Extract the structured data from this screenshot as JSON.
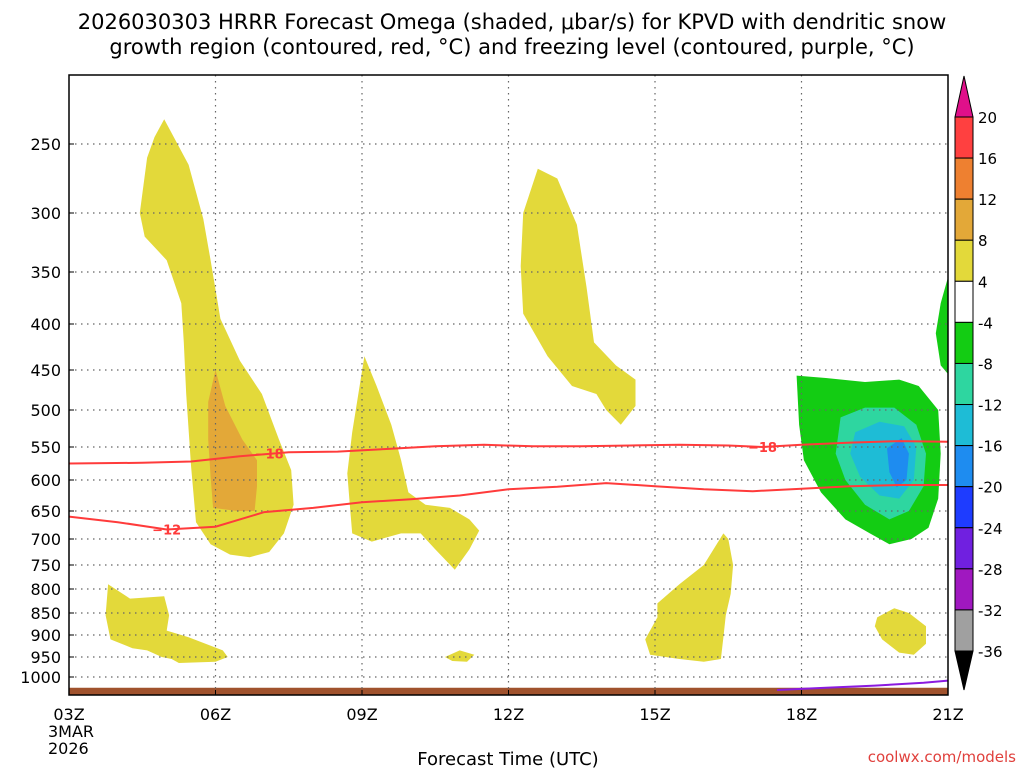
{
  "chart_data": {
    "type": "heatmap",
    "title_line1": "2026030303 HRRR Forecast Omega (shaded, μbar/s) for KPVD with dendritic snow",
    "title_line2": "growth region (contoured, red, °C) and freezing level (contoured, purple, °C)",
    "xlabel": "Forecast Time (UTC)",
    "ylabel": "",
    "x_ticks": [
      {
        "hour": 0,
        "label": "03Z",
        "sub1": "3MAR",
        "sub2": "2026"
      },
      {
        "hour": 3,
        "label": "06Z"
      },
      {
        "hour": 6,
        "label": "09Z"
      },
      {
        "hour": 9,
        "label": "12Z"
      },
      {
        "hour": 12,
        "label": "15Z"
      },
      {
        "hour": 15,
        "label": "18Z"
      },
      {
        "hour": 18,
        "label": "21Z"
      }
    ],
    "xlim": [
      0,
      18
    ],
    "y_ticks": [
      {
        "p": 250,
        "label": "250"
      },
      {
        "p": 300,
        "label": "300"
      },
      {
        "p": 350,
        "label": "350"
      },
      {
        "p": 400,
        "label": "400"
      },
      {
        "p": 450,
        "label": "450"
      },
      {
        "p": 500,
        "label": "500"
      },
      {
        "p": 550,
        "label": "550"
      },
      {
        "p": 600,
        "label": "600"
      },
      {
        "p": 650,
        "label": "650"
      },
      {
        "p": 700,
        "label": "700"
      },
      {
        "p": 750,
        "label": "750"
      },
      {
        "p": 800,
        "label": "800"
      },
      {
        "p": 850,
        "label": "850"
      },
      {
        "p": 900,
        "label": "900"
      },
      {
        "p": 950,
        "label": "950"
      },
      {
        "p": 1000,
        "label": "1000"
      }
    ],
    "ylim_hPa": [
      200,
      1025
    ],
    "colorbar": {
      "levels": [
        {
          "label": "20",
          "color": "#ff1e8c"
        },
        {
          "label": "16",
          "color": "#ff4040"
        },
        {
          "label": "12",
          "color": "#ee8030"
        },
        {
          "label": "8",
          "color": "#e3a838"
        },
        {
          "label": "4",
          "color": "#e3d93a"
        },
        {
          "label": "-4",
          "color": "#ffffff"
        },
        {
          "label": "-8",
          "color": "#13cc13"
        },
        {
          "label": "-12",
          "color": "#2ed6a0"
        },
        {
          "label": "-16",
          "color": "#1ebcd6"
        },
        {
          "label": "-20",
          "color": "#1e8cf0"
        },
        {
          "label": "-24",
          "color": "#1e3cff"
        },
        {
          "label": "-28",
          "color": "#7020e0"
        },
        {
          "label": "-32",
          "color": "#a018c0"
        },
        {
          "label": "-36",
          "color": "#a0a0a0"
        }
      ],
      "top_arrow_color": "#e0108a",
      "bottom_arrow_color": "#000000"
    },
    "shaded_regions": [
      {
        "color": "#e3d93a",
        "level": "4 to 8",
        "points": [
          [
            1.75,
            245
          ],
          [
            1.95,
            232
          ],
          [
            2.45,
            265
          ],
          [
            2.75,
            305
          ],
          [
            2.9,
            340
          ],
          [
            3.1,
            395
          ],
          [
            3.5,
            440
          ],
          [
            3.95,
            480
          ],
          [
            4.3,
            540
          ],
          [
            4.55,
            585
          ],
          [
            4.6,
            640
          ],
          [
            4.4,
            690
          ],
          [
            4.1,
            725
          ],
          [
            3.7,
            735
          ],
          [
            3.3,
            730
          ],
          [
            2.9,
            710
          ],
          [
            2.6,
            670
          ],
          [
            2.5,
            580
          ],
          [
            2.4,
            480
          ],
          [
            2.35,
            420
          ],
          [
            2.3,
            380
          ],
          [
            2.0,
            340
          ],
          [
            1.55,
            320
          ],
          [
            1.45,
            300
          ],
          [
            1.6,
            260
          ]
        ]
      },
      {
        "color": "#e3a838",
        "level": "8 to 12",
        "points": [
          [
            3.0,
            450
          ],
          [
            3.2,
            495
          ],
          [
            3.55,
            540
          ],
          [
            3.85,
            570
          ],
          [
            3.85,
            610
          ],
          [
            3.8,
            650
          ],
          [
            3.45,
            650
          ],
          [
            2.95,
            645
          ],
          [
            2.9,
            595
          ],
          [
            2.85,
            540
          ],
          [
            2.85,
            490
          ]
        ]
      },
      {
        "color": "#e3d93a",
        "level": "4 to 8",
        "points": [
          [
            5.8,
            530
          ],
          [
            6.05,
            435
          ],
          [
            6.3,
            470
          ],
          [
            6.6,
            520
          ],
          [
            6.8,
            570
          ],
          [
            6.95,
            620
          ],
          [
            7.3,
            640
          ],
          [
            7.8,
            645
          ],
          [
            8.2,
            665
          ],
          [
            8.4,
            685
          ],
          [
            8.2,
            720
          ],
          [
            7.9,
            760
          ],
          [
            7.5,
            720
          ],
          [
            7.2,
            690
          ],
          [
            6.8,
            690
          ],
          [
            6.2,
            705
          ],
          [
            5.8,
            690
          ],
          [
            5.75,
            640
          ],
          [
            5.7,
            590
          ]
        ]
      },
      {
        "color": "#e3d93a",
        "level": "4 to 8",
        "points": [
          [
            9.3,
            300
          ],
          [
            9.6,
            268
          ],
          [
            10.0,
            275
          ],
          [
            10.4,
            310
          ],
          [
            10.6,
            365
          ],
          [
            10.75,
            420
          ],
          [
            11.2,
            445
          ],
          [
            11.6,
            462
          ],
          [
            11.6,
            495
          ],
          [
            11.3,
            520
          ],
          [
            11.0,
            500
          ],
          [
            10.8,
            480
          ],
          [
            10.3,
            470
          ],
          [
            9.8,
            435
          ],
          [
            9.3,
            390
          ],
          [
            9.25,
            345
          ]
        ]
      },
      {
        "color": "#e3d93a",
        "level": "4 to 8",
        "points": [
          [
            0.8,
            790
          ],
          [
            1.25,
            820
          ],
          [
            1.95,
            815
          ],
          [
            2.05,
            855
          ],
          [
            2.0,
            890
          ],
          [
            2.45,
            905
          ],
          [
            3.15,
            935
          ],
          [
            3.25,
            950
          ],
          [
            3.0,
            962
          ],
          [
            2.25,
            965
          ],
          [
            2.1,
            955
          ],
          [
            1.9,
            950
          ],
          [
            1.6,
            935
          ],
          [
            1.3,
            930
          ],
          [
            0.85,
            910
          ],
          [
            0.75,
            855
          ]
        ]
      },
      {
        "color": "#e3d93a",
        "level": "4 to 8",
        "points": [
          [
            13.4,
            690
          ],
          [
            13.5,
            700
          ],
          [
            13.6,
            750
          ],
          [
            13.55,
            810
          ],
          [
            13.45,
            855
          ],
          [
            13.4,
            905
          ],
          [
            13.35,
            955
          ],
          [
            13.0,
            962
          ],
          [
            12.5,
            955
          ],
          [
            11.9,
            945
          ],
          [
            11.8,
            910
          ],
          [
            12.05,
            860
          ],
          [
            12.05,
            830
          ],
          [
            12.5,
            790
          ],
          [
            13.0,
            750
          ]
        ]
      },
      {
        "color": "#e3d93a",
        "level": "4 to 8",
        "points": [
          [
            7.7,
            950
          ],
          [
            8.0,
            935
          ],
          [
            8.3,
            945
          ],
          [
            8.15,
            962
          ],
          [
            7.85,
            960
          ]
        ]
      },
      {
        "color": "#e3d93a",
        "level": "4 to 8",
        "points": [
          [
            16.55,
            860
          ],
          [
            16.9,
            840
          ],
          [
            17.2,
            850
          ],
          [
            17.55,
            880
          ],
          [
            17.55,
            920
          ],
          [
            17.3,
            945
          ],
          [
            17.0,
            940
          ],
          [
            16.65,
            910
          ],
          [
            16.5,
            880
          ]
        ]
      },
      {
        "color": "#13cc13",
        "level": "-8 to -4",
        "points": [
          [
            14.9,
            457
          ],
          [
            15.5,
            460
          ],
          [
            16.3,
            465
          ],
          [
            17.0,
            462
          ],
          [
            17.4,
            470
          ],
          [
            17.8,
            500
          ],
          [
            17.85,
            560
          ],
          [
            17.8,
            630
          ],
          [
            17.6,
            680
          ],
          [
            17.25,
            700
          ],
          [
            16.8,
            710
          ],
          [
            16.4,
            690
          ],
          [
            15.9,
            665
          ],
          [
            15.4,
            620
          ],
          [
            15.05,
            570
          ],
          [
            14.95,
            520
          ]
        ]
      },
      {
        "color": "#2ed6a0",
        "level": "-12 to -8",
        "points": [
          [
            15.8,
            510
          ],
          [
            16.3,
            497
          ],
          [
            16.9,
            497
          ],
          [
            17.35,
            520
          ],
          [
            17.55,
            560
          ],
          [
            17.5,
            610
          ],
          [
            17.2,
            650
          ],
          [
            16.8,
            665
          ],
          [
            16.3,
            640
          ],
          [
            15.9,
            600
          ],
          [
            15.7,
            560
          ]
        ]
      },
      {
        "color": "#1ebcd6",
        "level": "-16 to -12",
        "points": [
          [
            16.1,
            530
          ],
          [
            16.6,
            516
          ],
          [
            17.1,
            522
          ],
          [
            17.35,
            550
          ],
          [
            17.3,
            600
          ],
          [
            17.0,
            630
          ],
          [
            16.6,
            625
          ],
          [
            16.2,
            595
          ],
          [
            16.0,
            560
          ]
        ]
      },
      {
        "color": "#1e8cf0",
        "level": "-20 to -16",
        "points": [
          [
            16.75,
            552
          ],
          [
            17.05,
            538
          ],
          [
            17.2,
            560
          ],
          [
            17.15,
            600
          ],
          [
            16.95,
            612
          ],
          [
            16.8,
            588
          ]
        ]
      },
      {
        "color": "#13cc13",
        "level": "-8 to -4",
        "points": [
          [
            18.0,
            355
          ],
          [
            18.0,
            455
          ],
          [
            17.85,
            445
          ],
          [
            17.75,
            410
          ],
          [
            17.85,
            380
          ]
        ]
      },
      {
        "color": "#a0522d",
        "level": "surface",
        "points": [
          [
            0.0,
            1015
          ],
          [
            18.0,
            1015
          ],
          [
            18.0,
            1025
          ],
          [
            0.0,
            1025
          ]
        ]
      }
    ],
    "contours": [
      {
        "name": "dgz-top",
        "color": "#ff3b3b",
        "label": "-18",
        "label_at": [
          4.1,
          560
        ],
        "label_at2": [
          14.2,
          550
        ],
        "points": [
          [
            0,
            575
          ],
          [
            1.5,
            574
          ],
          [
            2.5,
            572
          ],
          [
            3.5,
            564
          ],
          [
            4.5,
            558
          ],
          [
            5.5,
            557
          ],
          [
            6.5,
            553
          ],
          [
            7.5,
            549
          ],
          [
            8.5,
            547
          ],
          [
            9.5,
            549
          ],
          [
            10.5,
            549
          ],
          [
            11.5,
            548
          ],
          [
            12.5,
            547
          ],
          [
            13.5,
            548
          ],
          [
            14.2,
            550
          ],
          [
            15.0,
            547
          ],
          [
            16.0,
            544
          ],
          [
            17.0,
            542
          ],
          [
            18.0,
            543
          ]
        ]
      },
      {
        "name": "dgz-bottom",
        "color": "#ff3b3b",
        "label": "-12",
        "label_at": [
          2.0,
          683
        ],
        "points": [
          [
            0,
            660
          ],
          [
            1.0,
            670
          ],
          [
            2.0,
            683
          ],
          [
            3.0,
            678
          ],
          [
            4.0,
            652
          ],
          [
            5.0,
            645
          ],
          [
            6.0,
            636
          ],
          [
            7.0,
            631
          ],
          [
            8.0,
            625
          ],
          [
            9.0,
            615
          ],
          [
            10.0,
            611
          ],
          [
            11.0,
            605
          ],
          [
            12.0,
            610
          ],
          [
            13.0,
            615
          ],
          [
            14.0,
            618
          ],
          [
            15.0,
            614
          ],
          [
            16.0,
            610
          ],
          [
            17.0,
            608
          ],
          [
            18.0,
            608
          ]
        ]
      },
      {
        "name": "freezing-level",
        "color": "#8a1ae0",
        "label": "",
        "points": [
          [
            14.5,
            1018
          ],
          [
            15.5,
            1015
          ],
          [
            16.5,
            1012
          ],
          [
            17.5,
            1008
          ],
          [
            18.0,
            1005
          ]
        ]
      }
    ]
  },
  "credit": "coolwx.com/models"
}
